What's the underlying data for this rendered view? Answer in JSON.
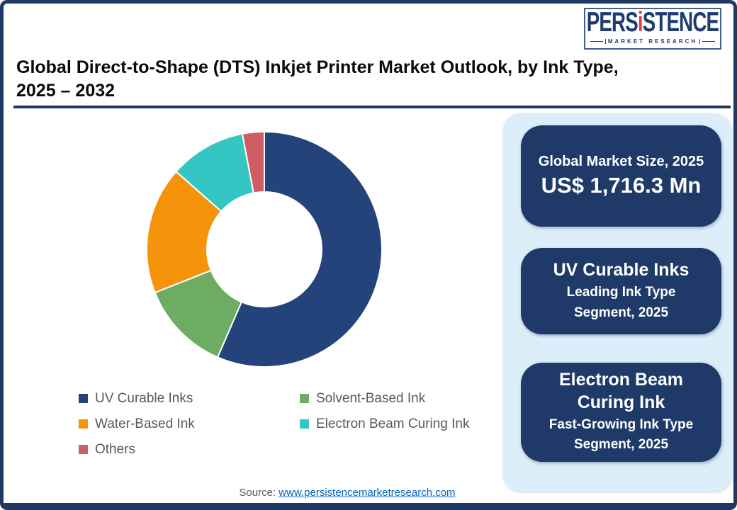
{
  "header": {
    "title_line1": "Global Direct-to-Shape (DTS) Inkjet Printer Market Outlook, by Ink Type,",
    "title_line2": "2025 – 2032"
  },
  "logo": {
    "brand_pre": "PERS",
    "brand_i": "i",
    "brand_post": "STENCE",
    "tagline": "MARKET RESEARCH"
  },
  "chart_data": {
    "type": "pie",
    "donut": true,
    "title": "Global Direct-to-Shape (DTS) Inkjet Printer Market Outlook, by Ink Type, 2025 – 2032",
    "start_angle_deg": 0,
    "direction": "clockwise",
    "legend_position": "below-left",
    "inner_radius_ratio": 0.49,
    "segments": [
      {
        "label": "UV Curable Inks",
        "value_pct": 56.5,
        "color": "#25437B"
      },
      {
        "label": "Solvent-Based Ink",
        "value_pct": 12.5,
        "color": "#6FAC63"
      },
      {
        "label": "Water-Based Ink",
        "value_pct": 17.5,
        "color": "#F5930B"
      },
      {
        "label": "Electron Beam Curing Ink",
        "value_pct": 10.5,
        "color": "#33C6C3"
      },
      {
        "label": "Others",
        "value_pct": 3.0,
        "color": "#D05C64"
      }
    ]
  },
  "sidebar": {
    "cards": [
      {
        "heading": "Global Market Size, 2025",
        "value": "US$ 1,716.3 Mn"
      },
      {
        "heading": "UV Curable Inks",
        "subtext": "Leading Ink Type Segment, 2025"
      },
      {
        "heading": "Electron Beam Curing Ink",
        "subtext": "Fast-Growing Ink Type Segment, 2025"
      }
    ]
  },
  "footer": {
    "source_label": "Source:",
    "source_link": "www.persistencemarketresearch.com"
  },
  "colors": {
    "accent_navy": "#1F3864",
    "panel_blue": "#DCEEFA",
    "card_navy": "#1F3A68",
    "link_blue": "#0563C1",
    "text_gray": "#595959",
    "logo_navy": "#1E3C6E",
    "logo_red": "#E13A3E"
  }
}
